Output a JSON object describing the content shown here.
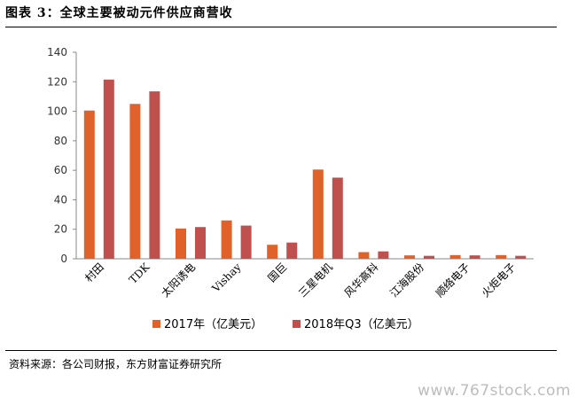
{
  "figure": {
    "title": "图表 3：全球主要被动元件供应商营收",
    "source": "资料来源：各公司财报，东方财富证券研究所",
    "watermark": "www.767stock.com"
  },
  "colors": {
    "s2017": "#E0622A",
    "s2018": "#C0504D",
    "axis": "#888888"
  },
  "chart_data": {
    "type": "bar",
    "title": "",
    "xlabel": "",
    "ylabel": "",
    "ylim": [
      0,
      140
    ],
    "yticks": [
      0,
      20,
      40,
      60,
      80,
      100,
      120,
      140
    ],
    "grid": false,
    "legend_position": "bottom",
    "categories": [
      "村田",
      "TDK",
      "太阳诱电",
      "Vishay",
      "国巨",
      "三星电机",
      "风华高科",
      "江海股份",
      "顺络电子",
      "火炬电子"
    ],
    "series": [
      {
        "name": "2017年（亿美元）",
        "values": [
          100.5,
          105,
          20.5,
          26,
          9.5,
          60.5,
          4.5,
          2.3,
          2.5,
          2.5
        ]
      },
      {
        "name": "2018年Q3（亿美元）",
        "values": [
          121.5,
          113.5,
          21.5,
          22.5,
          11,
          55,
          5,
          2,
          2.3,
          2.0
        ]
      }
    ]
  }
}
